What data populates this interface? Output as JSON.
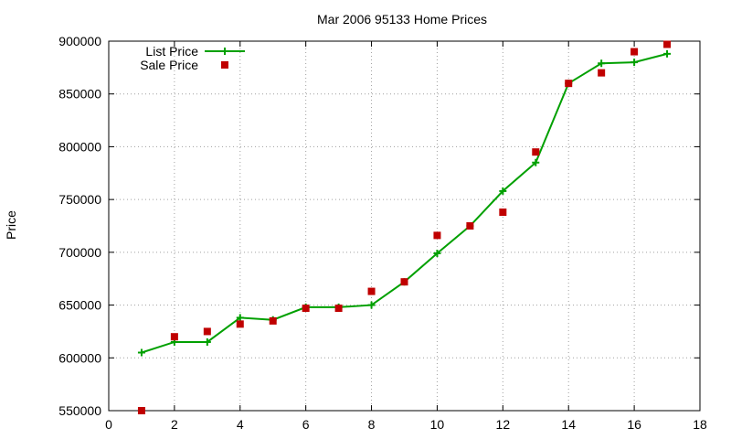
{
  "chart_data": {
    "type": "line",
    "title": "Mar 2006 95133 Home Prices",
    "xlabel": "",
    "ylabel": "Price",
    "xlim": [
      0,
      18
    ],
    "ylim": [
      550000,
      900000
    ],
    "x_ticks": [
      "0",
      "2",
      "4",
      "6",
      "8",
      "10",
      "12",
      "14",
      "16",
      "18"
    ],
    "y_ticks": [
      "550000",
      "600000",
      "650000",
      "700000",
      "750000",
      "800000",
      "850000",
      "900000"
    ],
    "grid": true,
    "legend_position": "top-left",
    "series": [
      {
        "name": "List Price",
        "type": "line",
        "marker": "plus",
        "color": "#00a000",
        "x": [
          1,
          2,
          3,
          4,
          5,
          6,
          7,
          8,
          9,
          10,
          11,
          12,
          13,
          14,
          15,
          16,
          17
        ],
        "values": [
          605000,
          615000,
          615000,
          638000,
          636000,
          648000,
          648000,
          650000,
          672000,
          699000,
          725000,
          758000,
          785000,
          860000,
          879000,
          880000,
          888000
        ]
      },
      {
        "name": "Sale Price",
        "type": "scatter",
        "marker": "square",
        "color": "#c00000",
        "x": [
          1,
          2,
          3,
          4,
          5,
          6,
          7,
          8,
          9,
          10,
          11,
          12,
          13,
          14,
          15,
          16,
          17
        ],
        "values": [
          550000,
          620000,
          625000,
          632000,
          635000,
          647000,
          647000,
          663000,
          672000,
          716000,
          725000,
          738000,
          795000,
          860000,
          870000,
          890000,
          897000
        ]
      }
    ]
  }
}
